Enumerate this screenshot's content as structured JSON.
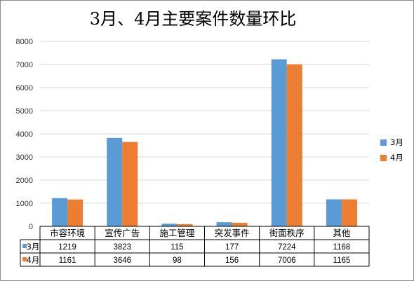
{
  "chart_data": {
    "type": "bar",
    "title": "3月、4月主要案件数量环比",
    "categories": [
      "市容环境",
      "宣传广告",
      "施工管理",
      "突发事件",
      "街面秩序",
      "其他"
    ],
    "series": [
      {
        "name": "3月",
        "values": [
          1219,
          3823,
          115,
          177,
          7224,
          1168
        ],
        "color": "#5b9bd5"
      },
      {
        "name": "4月",
        "values": [
          1161,
          3646,
          98,
          156,
          7006,
          1165
        ],
        "color": "#ed7d31"
      }
    ],
    "ylim": [
      0,
      8000
    ],
    "yticks": [
      0,
      1000,
      2000,
      3000,
      4000,
      5000,
      6000,
      7000,
      8000
    ],
    "grid": true,
    "legend": "right",
    "data_table": true
  }
}
